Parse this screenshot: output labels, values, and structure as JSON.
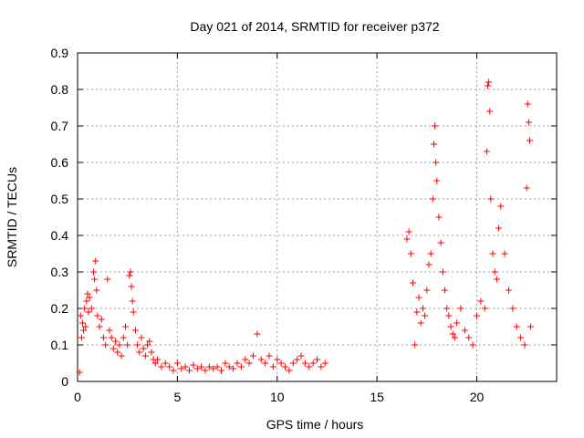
{
  "chart_data": {
    "type": "scatter",
    "title": "Day 021 of 2014, SRMTID for receiver p372",
    "xlabel": "GPS time / hours",
    "ylabel": "SRMTID / TECUs",
    "xlim": [
      0,
      24
    ],
    "ylim": [
      0,
      0.9
    ],
    "xticks": [
      0,
      5,
      10,
      15,
      20
    ],
    "yticks": [
      0,
      0.1,
      0.2,
      0.3,
      0.4,
      0.5,
      0.6,
      0.7,
      0.8,
      0.9
    ],
    "grid": true,
    "marker": "+",
    "color": "#ff0000",
    "series": [
      {
        "name": "SRMTID",
        "points": [
          [
            0.1,
            0.025
          ],
          [
            0.15,
            0.18
          ],
          [
            0.2,
            0.12
          ],
          [
            0.25,
            0.16
          ],
          [
            0.3,
            0.14
          ],
          [
            0.35,
            0.2
          ],
          [
            0.4,
            0.15
          ],
          [
            0.45,
            0.22
          ],
          [
            0.5,
            0.24
          ],
          [
            0.55,
            0.19
          ],
          [
            0.6,
            0.23
          ],
          [
            0.7,
            0.2
          ],
          [
            0.8,
            0.3
          ],
          [
            0.85,
            0.28
          ],
          [
            0.9,
            0.33
          ],
          [
            0.95,
            0.25
          ],
          [
            1.0,
            0.18
          ],
          [
            1.1,
            0.15
          ],
          [
            1.2,
            0.17
          ],
          [
            1.3,
            0.12
          ],
          [
            1.4,
            0.1
          ],
          [
            1.5,
            0.28
          ],
          [
            1.6,
            0.14
          ],
          [
            1.7,
            0.12
          ],
          [
            1.8,
            0.09
          ],
          [
            1.9,
            0.11
          ],
          [
            2.0,
            0.08
          ],
          [
            2.1,
            0.1
          ],
          [
            2.2,
            0.07
          ],
          [
            2.3,
            0.12
          ],
          [
            2.4,
            0.15
          ],
          [
            2.5,
            0.1
          ],
          [
            2.6,
            0.29
          ],
          [
            2.65,
            0.3
          ],
          [
            2.7,
            0.26
          ],
          [
            2.75,
            0.22
          ],
          [
            2.8,
            0.19
          ],
          [
            2.9,
            0.14
          ],
          [
            3.0,
            0.1
          ],
          [
            3.1,
            0.08
          ],
          [
            3.2,
            0.12
          ],
          [
            3.3,
            0.09
          ],
          [
            3.4,
            0.07
          ],
          [
            3.5,
            0.1
          ],
          [
            3.6,
            0.11
          ],
          [
            3.7,
            0.08
          ],
          [
            3.8,
            0.06
          ],
          [
            3.9,
            0.05
          ],
          [
            4.0,
            0.06
          ],
          [
            4.2,
            0.04
          ],
          [
            4.4,
            0.05
          ],
          [
            4.6,
            0.04
          ],
          [
            4.8,
            0.03
          ],
          [
            5.0,
            0.05
          ],
          [
            5.2,
            0.035
          ],
          [
            5.4,
            0.04
          ],
          [
            5.6,
            0.03
          ],
          [
            5.8,
            0.045
          ],
          [
            6.0,
            0.035
          ],
          [
            6.2,
            0.04
          ],
          [
            6.4,
            0.03
          ],
          [
            6.6,
            0.04
          ],
          [
            6.8,
            0.035
          ],
          [
            7.0,
            0.04
          ],
          [
            7.2,
            0.03
          ],
          [
            7.4,
            0.05
          ],
          [
            7.6,
            0.04
          ],
          [
            7.8,
            0.035
          ],
          [
            8.0,
            0.05
          ],
          [
            8.2,
            0.04
          ],
          [
            8.4,
            0.06
          ],
          [
            8.6,
            0.05
          ],
          [
            8.8,
            0.07
          ],
          [
            9.0,
            0.13
          ],
          [
            9.2,
            0.06
          ],
          [
            9.4,
            0.05
          ],
          [
            9.6,
            0.07
          ],
          [
            9.8,
            0.04
          ],
          [
            10.0,
            0.06
          ],
          [
            10.2,
            0.05
          ],
          [
            10.4,
            0.04
          ],
          [
            10.6,
            0.03
          ],
          [
            10.8,
            0.05
          ],
          [
            11.0,
            0.06
          ],
          [
            11.2,
            0.07
          ],
          [
            11.4,
            0.05
          ],
          [
            11.6,
            0.04
          ],
          [
            11.8,
            0.05
          ],
          [
            12.0,
            0.06
          ],
          [
            12.2,
            0.04
          ],
          [
            12.4,
            0.05
          ],
          [
            16.5,
            0.39
          ],
          [
            16.6,
            0.41
          ],
          [
            16.7,
            0.35
          ],
          [
            16.8,
            0.27
          ],
          [
            16.9,
            0.1
          ],
          [
            17.0,
            0.19
          ],
          [
            17.1,
            0.23
          ],
          [
            17.2,
            0.16
          ],
          [
            17.3,
            0.2
          ],
          [
            17.4,
            0.18
          ],
          [
            17.5,
            0.25
          ],
          [
            17.6,
            0.32
          ],
          [
            17.7,
            0.35
          ],
          [
            17.8,
            0.5
          ],
          [
            17.85,
            0.65
          ],
          [
            17.9,
            0.7
          ],
          [
            17.95,
            0.6
          ],
          [
            18.0,
            0.55
          ],
          [
            18.1,
            0.45
          ],
          [
            18.2,
            0.38
          ],
          [
            18.3,
            0.3
          ],
          [
            18.4,
            0.25
          ],
          [
            18.5,
            0.2
          ],
          [
            18.6,
            0.18
          ],
          [
            18.7,
            0.15
          ],
          [
            18.8,
            0.13
          ],
          [
            18.9,
            0.12
          ],
          [
            19.0,
            0.16
          ],
          [
            19.2,
            0.2
          ],
          [
            19.4,
            0.14
          ],
          [
            19.6,
            0.12
          ],
          [
            19.8,
            0.1
          ],
          [
            20.0,
            0.18
          ],
          [
            20.2,
            0.22
          ],
          [
            20.4,
            0.2
          ],
          [
            20.5,
            0.63
          ],
          [
            20.55,
            0.81
          ],
          [
            20.6,
            0.82
          ],
          [
            20.65,
            0.74
          ],
          [
            20.7,
            0.5
          ],
          [
            20.8,
            0.35
          ],
          [
            20.9,
            0.3
          ],
          [
            21.0,
            0.28
          ],
          [
            21.1,
            0.42
          ],
          [
            21.2,
            0.48
          ],
          [
            21.4,
            0.35
          ],
          [
            21.6,
            0.25
          ],
          [
            21.8,
            0.2
          ],
          [
            22.0,
            0.15
          ],
          [
            22.2,
            0.12
          ],
          [
            22.4,
            0.1
          ],
          [
            22.5,
            0.53
          ],
          [
            22.55,
            0.76
          ],
          [
            22.6,
            0.71
          ],
          [
            22.65,
            0.66
          ],
          [
            22.7,
            0.15
          ]
        ]
      }
    ]
  }
}
